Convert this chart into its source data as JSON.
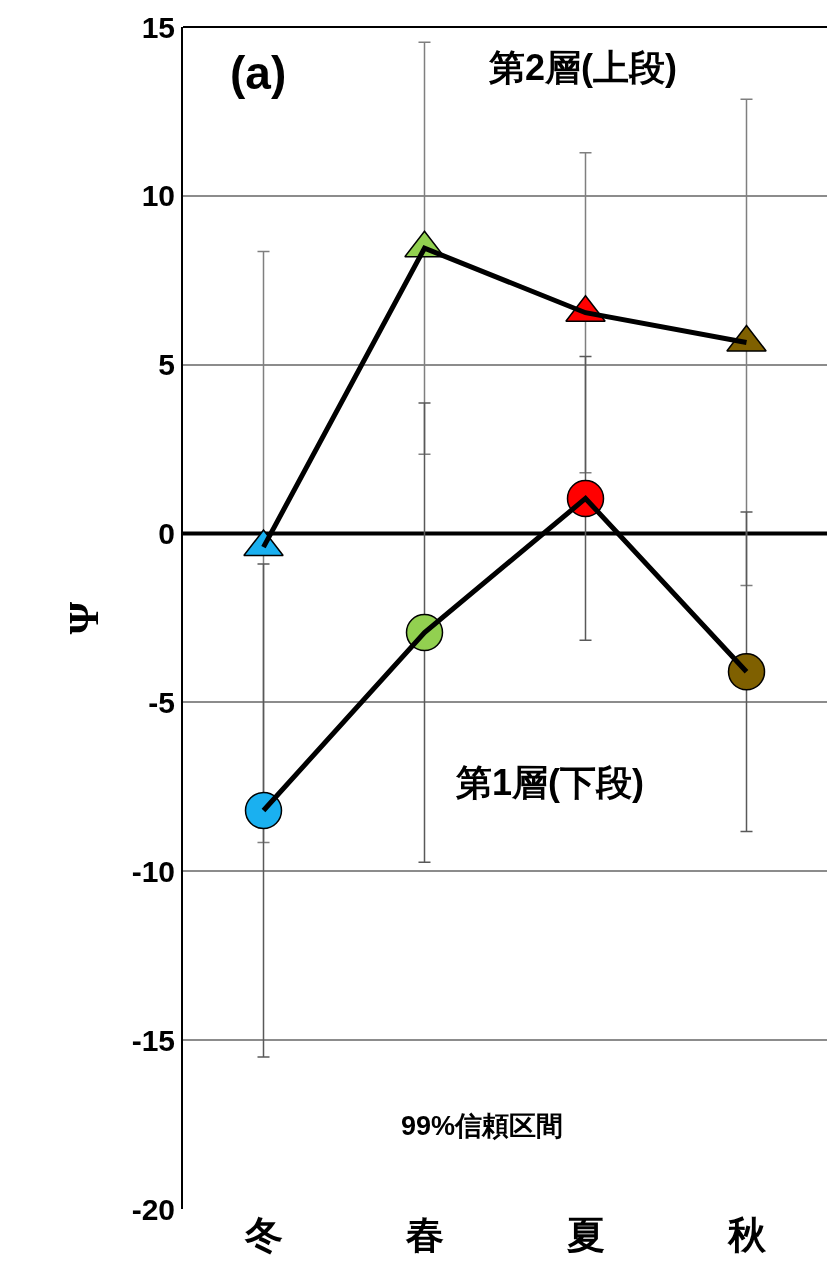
{
  "chart_data": {
    "type": "line",
    "ylabel": "Ψ",
    "categories": [
      "冬",
      "春",
      "夏",
      "秋"
    ],
    "series": [
      {
        "color": "#000000",
        "colors": [
          "#1ab0f0",
          "#92d050",
          "#ff0000",
          "#7f6000"
        ],
        "marker": "triangle",
        "values": [
          -0.4,
          8.45,
          6.54,
          5.66
        ],
        "errors": [
          8.75,
          6.1,
          4.74,
          7.2
        ]
      },
      {
        "color": "#000000",
        "colors": [
          "#1ab0f0",
          "#92d050",
          "#ff0000",
          "#7f6000"
        ],
        "marker": "circle",
        "values": [
          -8.2,
          -2.93,
          1.04,
          -4.09
        ],
        "errors": [
          7.3,
          6.8,
          4.2,
          4.73
        ]
      }
    ],
    "ylim": [
      -20,
      15
    ],
    "yticks": [
      -20,
      -15,
      -10,
      -5,
      0,
      5,
      10,
      15
    ],
    "grid": "y",
    "ref_lines": [
      {
        "axis": "y",
        "value": 0,
        "color": "#000000"
      }
    ],
    "annotations": [
      "(a)",
      "第2層(上段)",
      "第1層(下段)",
      "99%信頼区間"
    ]
  }
}
